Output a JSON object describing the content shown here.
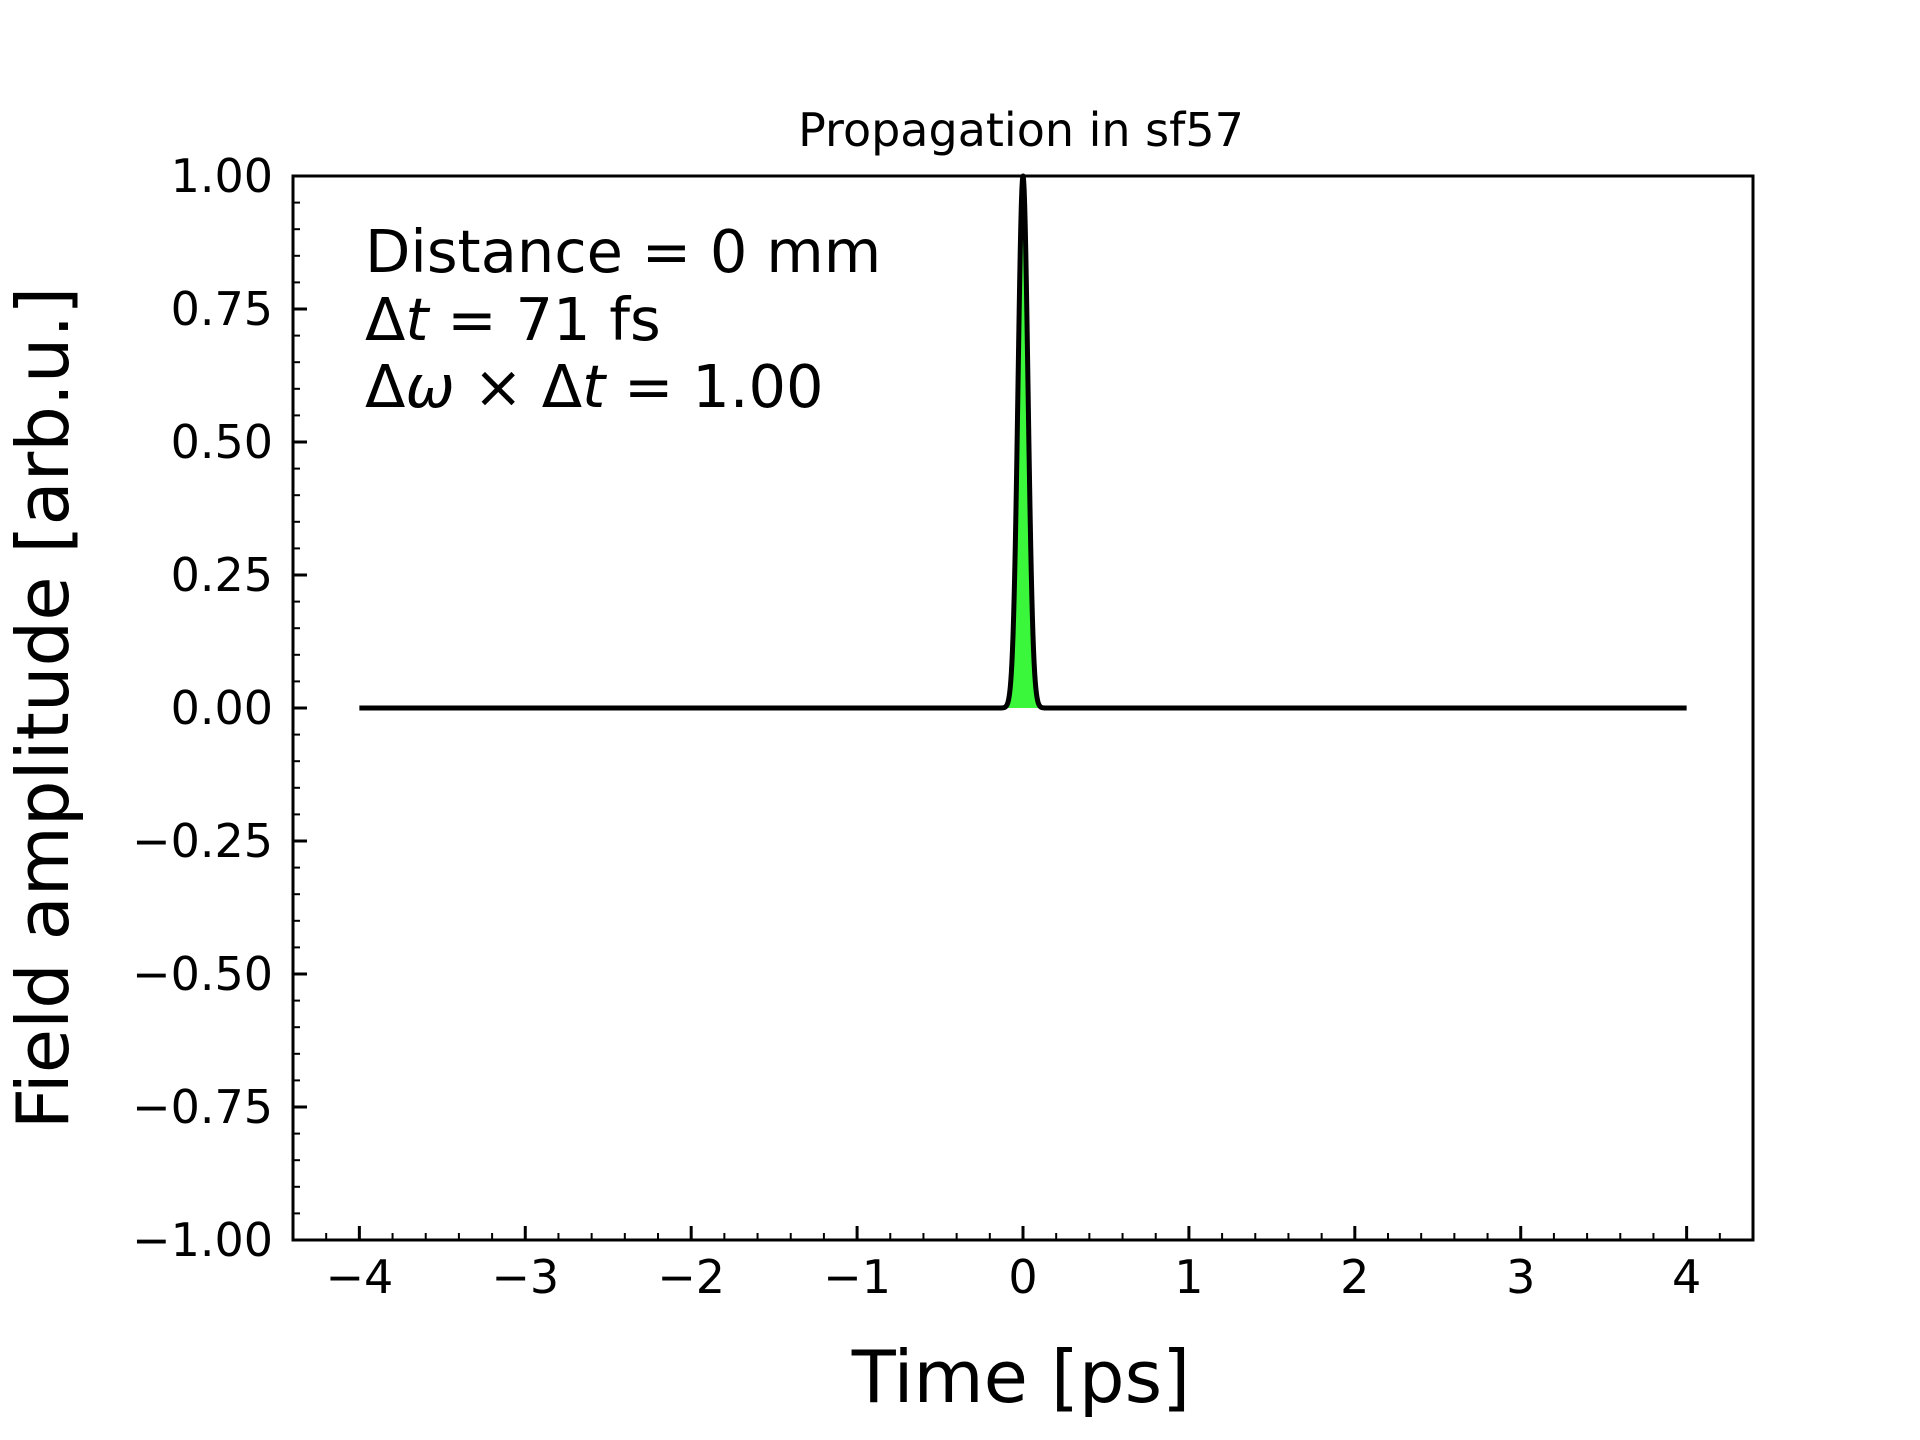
{
  "chart_data": {
    "type": "area",
    "title": "Propagation in sf57",
    "xlabel": "Time [ps]",
    "ylabel": "Field amplitude [arb.u.]",
    "xlim": [
      -4.4,
      4.4
    ],
    "ylim": [
      -1.0,
      1.0
    ],
    "x_ticks": [
      -4,
      -3,
      -2,
      -1,
      0,
      1,
      2,
      3,
      4
    ],
    "x_tick_labels": [
      "−4",
      "−3",
      "−2",
      "−1",
      "0",
      "1",
      "2",
      "3",
      "4"
    ],
    "y_ticks": [
      -1.0,
      -0.75,
      -0.5,
      -0.25,
      0.0,
      0.25,
      0.5,
      0.75,
      1.0
    ],
    "y_tick_labels": [
      "−1.00",
      "−0.75",
      "−0.50",
      "−0.25",
      "0.00",
      "0.25",
      "0.50",
      "0.75",
      "1.00"
    ],
    "grid": false,
    "legend": "none",
    "series": [
      {
        "peak_time": 0.0,
        "peak_amplitude": 1.0,
        "fwhm": 0.071,
        "x_range": [
          -4,
          4
        ],
        "line_color": "#000000",
        "fill_color": "#3bf73b"
      }
    ],
    "annotations": [
      {
        "prefix": "Distance = 0 mm",
        "italic": "",
        "suffix": ""
      },
      {
        "prefix": "Δ",
        "italic": "t",
        "suffix": " = 71 fs"
      },
      {
        "prefix": "Δ",
        "italic": "ω",
        "suffix": " × Δ",
        "italic2": "t",
        "suffix2": " = 1.00"
      }
    ]
  }
}
